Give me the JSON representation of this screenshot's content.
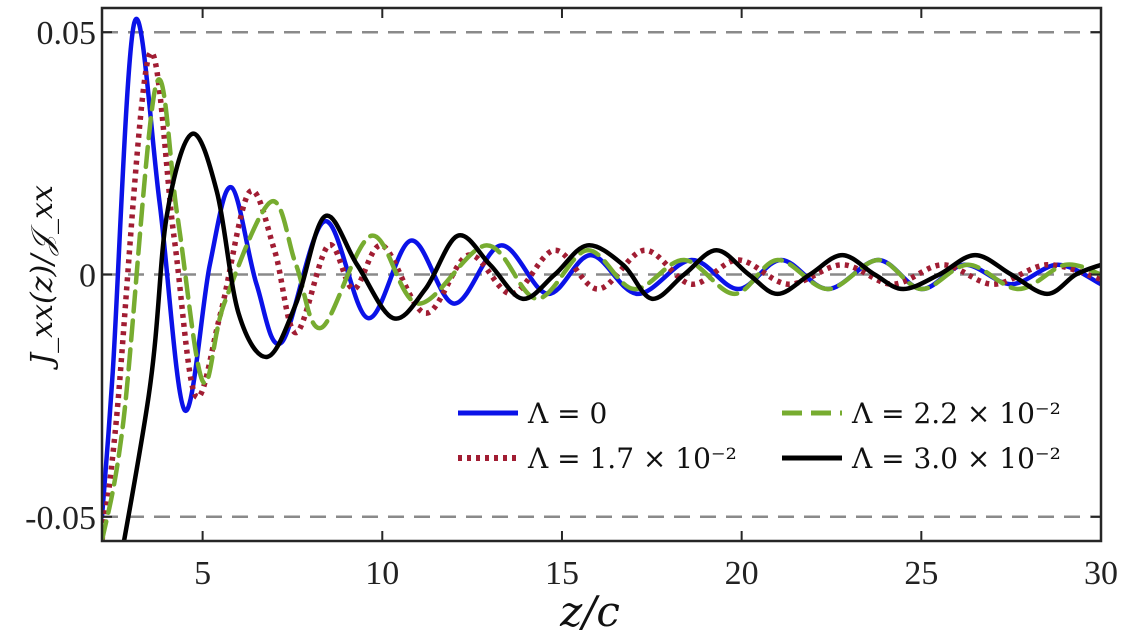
{
  "chart_data": {
    "type": "line",
    "title": "",
    "xlabel": "z/c",
    "ylabel": "J_xx(z)/𝒥_xx",
    "xlim": [
      2.2,
      30
    ],
    "ylim": [
      -0.055,
      0.055
    ],
    "x_ticks": [
      5,
      10,
      15,
      20,
      25,
      30
    ],
    "y_ticks": [
      {
        "value": 0.05,
        "label": "0.05"
      },
      {
        "value": 0,
        "label": "0"
      },
      {
        "value": -0.05,
        "label": "-0.05"
      }
    ],
    "reference_lines": [
      0.05,
      0,
      -0.05
    ],
    "grid": false,
    "legend_position": "bottom-right",
    "series": [
      {
        "name": "Λ = 0",
        "color": "#0b12e8",
        "style": "solid",
        "x": [
          2.2,
          2.5,
          3.1,
          3.8,
          4.5,
          5.2,
          5.8,
          6.5,
          7.2,
          8.4,
          9.6,
          10.8,
          12.0,
          13.3,
          14.6,
          15.8,
          17.1,
          18.6,
          19.9,
          21.1,
          22.4,
          23.8,
          25.0,
          26.2,
          27.5,
          28.8,
          30.0
        ],
        "y": [
          -0.05,
          -0.02,
          0.052,
          0.015,
          -0.028,
          0.002,
          0.018,
          -0.002,
          -0.014,
          0.011,
          -0.009,
          0.007,
          -0.006,
          0.006,
          -0.004,
          0.004,
          -0.004,
          0.003,
          -0.003,
          0.003,
          -0.003,
          0.003,
          -0.003,
          0.002,
          -0.002,
          0.002,
          -0.002
        ]
      },
      {
        "name": "Λ = 1.7 × 10⁻²",
        "color": "#a11d33",
        "style": "dotted",
        "x": [
          2.2,
          2.6,
          3.5,
          4.2,
          4.8,
          5.5,
          6.3,
          7.0,
          7.6,
          8.5,
          9.2,
          10.0,
          11.2,
          12.4,
          13.6,
          14.8,
          16.0,
          17.3,
          18.6,
          19.9,
          21.3,
          22.8,
          24.2,
          25.6,
          27.0,
          28.5,
          30.0
        ],
        "y": [
          -0.055,
          -0.03,
          0.045,
          0.008,
          -0.025,
          -0.008,
          0.017,
          0.005,
          -0.012,
          0.006,
          -0.003,
          0.006,
          -0.008,
          0.004,
          -0.004,
          0.005,
          -0.003,
          0.005,
          -0.002,
          0.003,
          -0.002,
          0.002,
          -0.002,
          0.002,
          -0.002,
          0.002,
          -0.001
        ]
      },
      {
        "name": "Λ = 2.2 × 10⁻²",
        "color": "#77ac30",
        "style": "dashed",
        "x": [
          2.2,
          2.8,
          3.7,
          4.3,
          5.0,
          5.6,
          6.9,
          7.6,
          8.3,
          9.7,
          11.0,
          12.9,
          14.3,
          15.7,
          17.0,
          18.4,
          19.8,
          21.0,
          22.4,
          23.8,
          25.0,
          26.3,
          27.7,
          29.0,
          30.0
        ],
        "y": [
          -0.055,
          -0.03,
          0.039,
          0.012,
          -0.022,
          -0.006,
          0.015,
          0.002,
          -0.011,
          0.008,
          -0.006,
          0.006,
          -0.005,
          0.005,
          -0.003,
          0.003,
          -0.004,
          0.003,
          -0.003,
          0.003,
          -0.003,
          0.002,
          -0.003,
          0.002,
          0.0
        ]
      },
      {
        "name": "Λ = 3.0 × 10⁻²",
        "color": "#000000",
        "style": "solid",
        "x": [
          2.2,
          3.5,
          4.0,
          4.7,
          5.4,
          6.0,
          6.8,
          7.6,
          8.4,
          9.3,
          10.3,
          11.2,
          12.1,
          13.0,
          13.9,
          14.8,
          15.7,
          16.7,
          17.5,
          18.4,
          19.3,
          20.2,
          21.0,
          21.9,
          22.8,
          23.7,
          24.5,
          25.5,
          26.5,
          27.5,
          28.5,
          29.3,
          30.0
        ],
        "y": [
          -0.08,
          -0.025,
          0.012,
          0.029,
          0.017,
          -0.008,
          -0.017,
          -0.006,
          0.012,
          0.002,
          -0.009,
          -0.003,
          0.008,
          0.002,
          -0.005,
          0.0,
          0.006,
          0.002,
          -0.005,
          0.0,
          0.005,
          0.0,
          -0.004,
          0.0,
          0.004,
          0.0,
          -0.003,
          0.0,
          0.004,
          0.0,
          -0.004,
          0.0,
          0.002
        ]
      }
    ]
  }
}
